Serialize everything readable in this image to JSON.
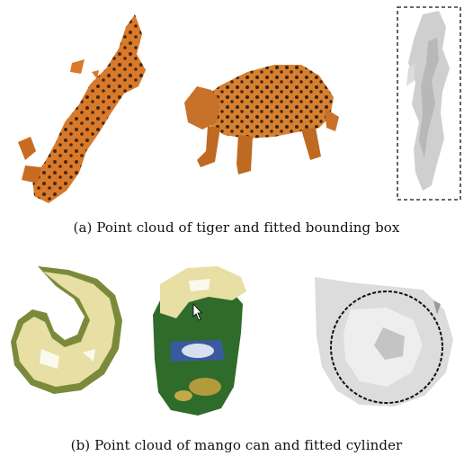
{
  "figure": {
    "caption_a": "(a)  Point cloud of tiger and fitted bounding box",
    "caption_b": "(b)  Point cloud of mango can and fitted cylinder"
  },
  "colors": {
    "tiger_orange": "#d9792a",
    "tiger_spots": "#2b1a0e",
    "can_lid": "#e7dfa3",
    "can_green": "#2f6b2a",
    "cloud_gray": "#cfcfcf",
    "fit_dashed": "#111111"
  }
}
